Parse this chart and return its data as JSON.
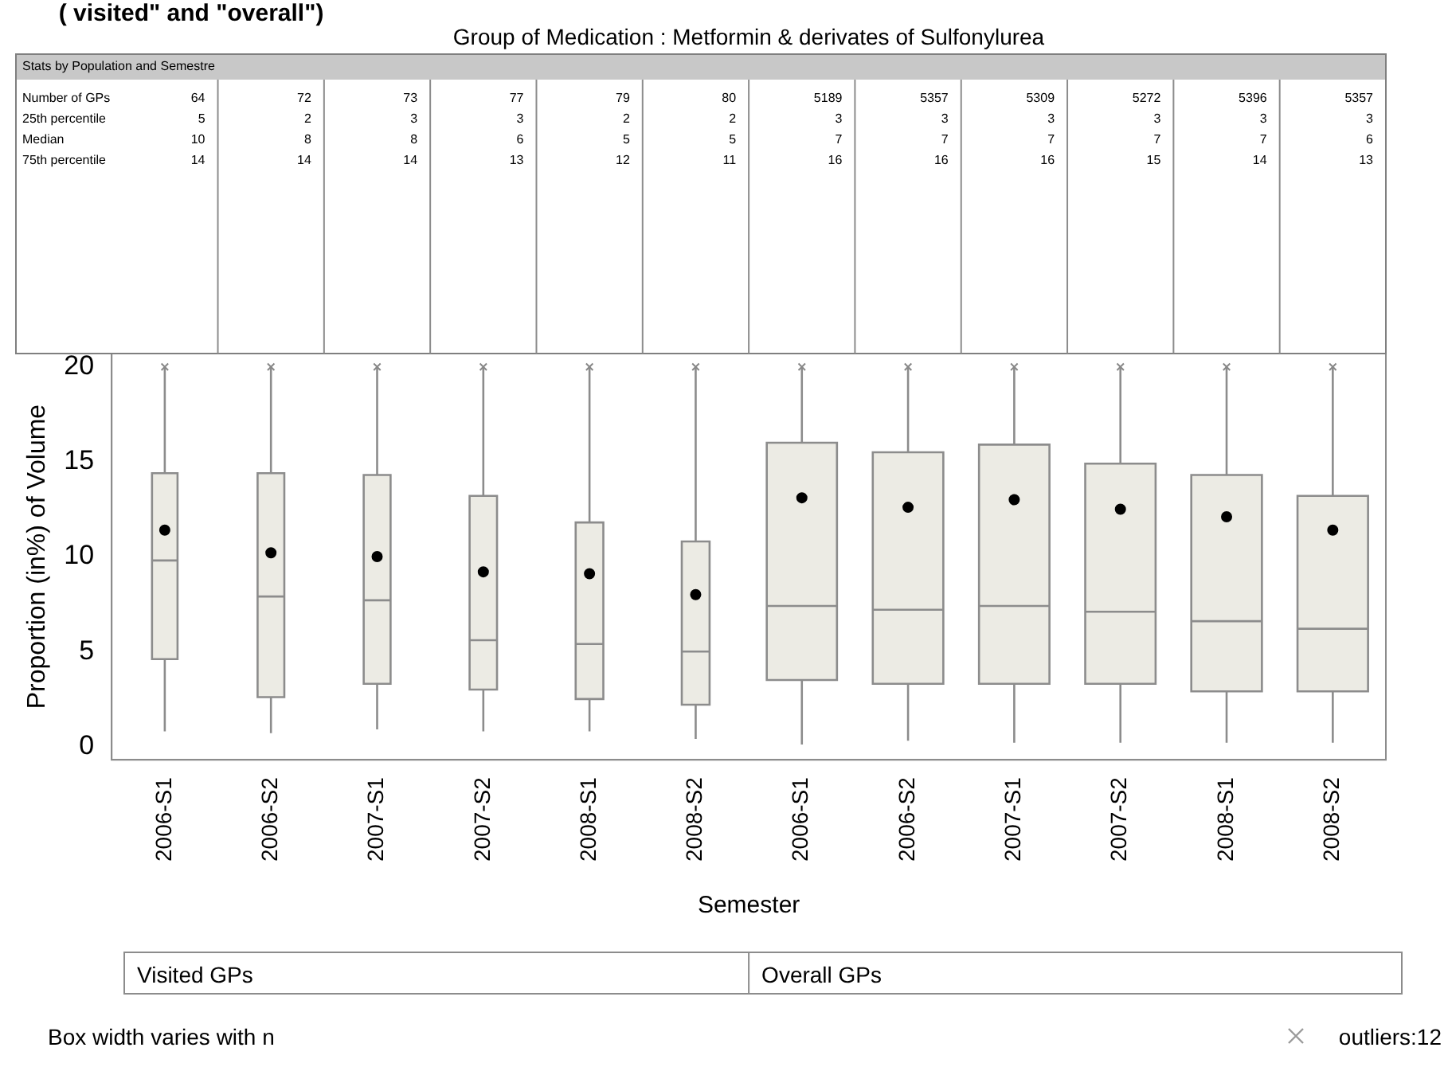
{
  "chart_data": {
    "type": "box",
    "title": "( visited\" and \"overall\")",
    "subtitle": "Group of Medication : Metformin & derivates of Sulfonylurea",
    "categories": [
      "2006-S1",
      "2006-S2",
      "2007-S1",
      "2007-S2",
      "2008-S1",
      "2008-S2",
      "2006-S1",
      "2006-S2",
      "2007-S1",
      "2007-S2",
      "2008-S1",
      "2008-S2"
    ],
    "boxes": [
      {
        "low": 0.8,
        "q1": 4.6,
        "median": 9.8,
        "q3": 14.4,
        "high": 20,
        "mean": 11.4,
        "outliers": [
          20
        ]
      },
      {
        "low": 0.7,
        "q1": 2.6,
        "median": 7.9,
        "q3": 14.4,
        "high": 20,
        "mean": 10.2,
        "outliers": [
          20
        ]
      },
      {
        "low": 0.9,
        "q1": 3.3,
        "median": 7.7,
        "q3": 14.3,
        "high": 20,
        "mean": 10.0,
        "outliers": [
          20
        ]
      },
      {
        "low": 0.8,
        "q1": 3.0,
        "median": 5.6,
        "q3": 13.2,
        "high": 20,
        "mean": 9.2,
        "outliers": [
          20
        ]
      },
      {
        "low": 0.8,
        "q1": 2.5,
        "median": 5.4,
        "q3": 11.8,
        "high": 20,
        "mean": 9.1,
        "outliers": [
          20
        ]
      },
      {
        "low": 0.4,
        "q1": 2.2,
        "median": 5.0,
        "q3": 10.8,
        "high": 20,
        "mean": 8.0,
        "outliers": [
          20
        ]
      },
      {
        "low": 0.1,
        "q1": 3.5,
        "median": 7.4,
        "q3": 16.0,
        "high": 20,
        "mean": 13.1,
        "outliers": [
          20
        ]
      },
      {
        "low": 0.3,
        "q1": 3.3,
        "median": 7.2,
        "q3": 15.5,
        "high": 20,
        "mean": 12.6,
        "outliers": [
          20
        ]
      },
      {
        "low": 0.2,
        "q1": 3.3,
        "median": 7.4,
        "q3": 15.9,
        "high": 20,
        "mean": 13.0,
        "outliers": [
          20
        ]
      },
      {
        "low": 0.2,
        "q1": 3.3,
        "median": 7.1,
        "q3": 14.9,
        "high": 20,
        "mean": 12.5,
        "outliers": [
          20
        ]
      },
      {
        "low": 0.2,
        "q1": 2.9,
        "median": 6.6,
        "q3": 14.3,
        "high": 20,
        "mean": 12.1,
        "outliers": [
          20
        ]
      },
      {
        "low": 0.2,
        "q1": 2.9,
        "median": 6.2,
        "q3": 13.2,
        "high": 20,
        "mean": 11.4,
        "outliers": [
          20
        ]
      }
    ],
    "color": "#ecebe4",
    "marker": "cross",
    "grid": false,
    "legend": false,
    "ylim": [
      -0.7,
      20.7
    ],
    "yticks": [
      0,
      5,
      10,
      15,
      20
    ],
    "ylabel": "Proportion (in%) of Volume",
    "xlabel": "Semester",
    "annotations": [
      "Stats by Population and Semestre",
      "Number of GPs",
      "25th percentile",
      "Median",
      "75th percentile",
      "64",
      "72",
      "73",
      "77",
      "79",
      "80",
      "5189",
      "5357",
      "5309",
      "5272",
      "5396",
      "5357",
      "5",
      "2",
      "3",
      "3",
      "2",
      "2",
      "3",
      "3",
      "3",
      "3",
      "3",
      "3",
      "10",
      "8",
      "8",
      "6",
      "5",
      "5",
      "7",
      "7",
      "7",
      "7",
      "7",
      "6",
      "14",
      "14",
      "14",
      "13",
      "12",
      "11",
      "16",
      "16",
      "16",
      "15",
      "14",
      "13",
      "Visited GPs",
      "Overall GPs",
      "Box width varies with n",
      "outliers:12"
    ]
  }
}
